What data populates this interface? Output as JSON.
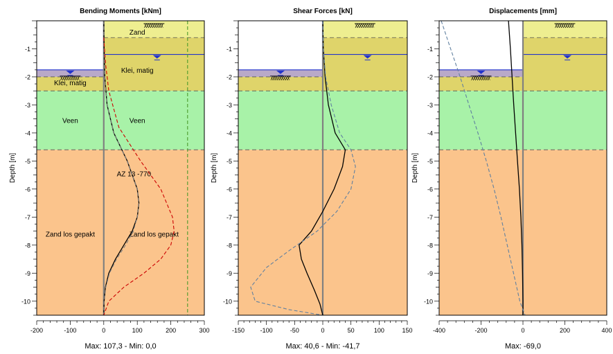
{
  "chart_data": [
    {
      "type": "line",
      "title": "Bending Moments [kNm]",
      "ylabel": "Depth [m]",
      "footer": "Max: 107,3 - Min: 0,0",
      "xlim": [
        -200,
        300
      ],
      "ylim": [
        -10.5,
        0
      ],
      "x_ticks": [
        "-200",
        "-100",
        "0",
        "100",
        "200",
        "300"
      ],
      "y_ticks": [
        "-1",
        "-2",
        "-3",
        "-4",
        "-5",
        "-6",
        "-7",
        "-8",
        "-9",
        "-10"
      ],
      "layer_labels": [
        {
          "text": "Zand",
          "x": 100,
          "y": -0.4
        },
        {
          "text": "Klei, matig",
          "x": 100,
          "y": -1.75
        },
        {
          "text": "Klei, matig",
          "x": -100,
          "y": -2.2
        },
        {
          "text": "Veen",
          "x": -100,
          "y": -3.55
        },
        {
          "text": "Veen",
          "x": 100,
          "y": -3.55
        },
        {
          "text": "AZ 13 -770",
          "x": 90,
          "y": -5.45
        },
        {
          "text": "Zand los gepakt",
          "x": -100,
          "y": -7.6
        },
        {
          "text": "Zand los gepakt",
          "x": 150,
          "y": -7.6
        }
      ],
      "series": [
        {
          "style": "solid",
          "color": "#000000",
          "points": [
            [
              0,
              0
            ],
            [
              1,
              -1
            ],
            [
              3,
              -2
            ],
            [
              10,
              -3
            ],
            [
              30,
              -4
            ],
            [
              70,
              -5
            ],
            [
              100,
              -6
            ],
            [
              105,
              -6.5
            ],
            [
              100,
              -7
            ],
            [
              85,
              -7.5
            ],
            [
              60,
              -8
            ],
            [
              35,
              -8.5
            ],
            [
              15,
              -9
            ],
            [
              5,
              -9.5
            ],
            [
              1,
              -10
            ],
            [
              0,
              -10.5
            ]
          ]
        },
        {
          "style": "dashed",
          "color": "#808080",
          "points": [
            [
              0,
              0
            ],
            [
              1,
              -1
            ],
            [
              3,
              -2
            ],
            [
              10,
              -3
            ],
            [
              30,
              -4
            ],
            [
              70,
              -5
            ],
            [
              100,
              -6
            ],
            [
              105,
              -6.5
            ],
            [
              100,
              -7
            ],
            [
              88,
              -7.5
            ],
            [
              65,
              -8
            ],
            [
              38,
              -8.5
            ],
            [
              17,
              -9
            ],
            [
              6,
              -9.5
            ],
            [
              1,
              -10
            ],
            [
              0,
              -10.5
            ]
          ]
        },
        {
          "style": "dashed",
          "color": "#cc0000",
          "points": [
            [
              0,
              -0.6
            ],
            [
              5,
              -1.5
            ],
            [
              15,
              -2.5
            ],
            [
              45,
              -3.8
            ],
            [
              110,
              -5
            ],
            [
              170,
              -6
            ],
            [
              205,
              -7
            ],
            [
              210,
              -7.5
            ],
            [
              200,
              -8
            ],
            [
              170,
              -8.5
            ],
            [
              120,
              -9
            ],
            [
              60,
              -9.5
            ],
            [
              15,
              -10
            ],
            [
              0,
              -10.5
            ]
          ]
        },
        {
          "style": "dashed",
          "color": "#4a9a2a",
          "points": [
            [
              250,
              0
            ],
            [
              250,
              -10.5
            ]
          ]
        }
      ]
    },
    {
      "type": "line",
      "title": "Shear Forces [kN]",
      "ylabel": "Depth [m]",
      "footer": "Max: 40,6 - Min: -41,7",
      "xlim": [
        -150,
        150
      ],
      "ylim": [
        -10.5,
        0
      ],
      "x_ticks": [
        "-150",
        "-100",
        "-50",
        "0",
        "50",
        "100",
        "150"
      ],
      "y_ticks": [
        "-1",
        "-2",
        "-3",
        "-4",
        "-5",
        "-6",
        "-7",
        "-8",
        "-9",
        "-10"
      ],
      "series": [
        {
          "style": "solid",
          "color": "#000000",
          "points": [
            [
              0,
              0
            ],
            [
              1,
              -1
            ],
            [
              4,
              -2
            ],
            [
              10,
              -3
            ],
            [
              22,
              -4
            ],
            [
              40,
              -4.6
            ],
            [
              35,
              -5.2
            ],
            [
              20,
              -6
            ],
            [
              0,
              -6.8
            ],
            [
              -20,
              -7.5
            ],
            [
              -42,
              -8
            ],
            [
              -38,
              -8.5
            ],
            [
              -28,
              -9
            ],
            [
              -15,
              -9.6
            ],
            [
              -5,
              -10.1
            ],
            [
              0,
              -10.5
            ]
          ]
        },
        {
          "style": "dashed",
          "color": "#6080a0",
          "points": [
            [
              0,
              0
            ],
            [
              1,
              -1
            ],
            [
              5,
              -2
            ],
            [
              15,
              -3
            ],
            [
              30,
              -4
            ],
            [
              50,
              -4.6
            ],
            [
              58,
              -5.2
            ],
            [
              50,
              -6
            ],
            [
              25,
              -6.8
            ],
            [
              -10,
              -7.5
            ],
            [
              -60,
              -8.2
            ],
            [
              -100,
              -8.8
            ],
            [
              -128,
              -9.5
            ],
            [
              -120,
              -10
            ],
            [
              -60,
              -10.3
            ],
            [
              0,
              -10.5
            ]
          ]
        }
      ]
    },
    {
      "type": "line",
      "title": "Displacements [mm]",
      "ylabel": "Depth [m]",
      "footer": "Max: -69,0",
      "xlim": [
        -400,
        400
      ],
      "ylim": [
        -10.5,
        0
      ],
      "x_ticks": [
        "-400",
        "-200",
        "0",
        "200",
        "400"
      ],
      "y_ticks": [
        "-1",
        "-2",
        "-3",
        "-4",
        "-5",
        "-6",
        "-7",
        "-8",
        "-9",
        "-10"
      ],
      "series": [
        {
          "style": "solid",
          "color": "#000000",
          "points": [
            [
              -69,
              0
            ],
            [
              -60,
              -1
            ],
            [
              -52,
              -2
            ],
            [
              -44,
              -3
            ],
            [
              -35,
              -4
            ],
            [
              -26,
              -5
            ],
            [
              -17,
              -6
            ],
            [
              -10,
              -7
            ],
            [
              -5,
              -8
            ],
            [
              -2,
              -9
            ],
            [
              0,
              -10
            ],
            [
              0,
              -10.5
            ]
          ]
        },
        {
          "style": "dashed",
          "color": "#6080a0",
          "points": [
            [
              -390,
              0
            ],
            [
              -345,
              -1
            ],
            [
              -300,
              -2
            ],
            [
              -258,
              -3
            ],
            [
              -215,
              -4
            ],
            [
              -175,
              -5
            ],
            [
              -138,
              -6
            ],
            [
              -105,
              -7
            ],
            [
              -75,
              -8
            ],
            [
              -45,
              -9
            ],
            [
              -15,
              -10
            ],
            [
              10,
              -10.5
            ]
          ]
        }
      ]
    }
  ],
  "soil_profile": {
    "left_layers": [
      {
        "name": "Klei, matig",
        "top": -1.75,
        "bottom": -2.0,
        "color": "#b9a9c8"
      },
      {
        "name": "Klei, matig",
        "top": -2.0,
        "bottom": -2.5,
        "color": "#dfd46a"
      },
      {
        "name": "Veen",
        "top": -2.5,
        "bottom": -4.6,
        "color": "#a8f2a8"
      },
      {
        "name": "Zand los gepakt",
        "top": -4.6,
        "bottom": -10.5,
        "color": "#fbc48c"
      }
    ],
    "right_layers": [
      {
        "name": "Zand",
        "top": 0,
        "bottom": -0.6,
        "color": "#eeee90"
      },
      {
        "name": "Klei, matig",
        "top": -0.6,
        "bottom": -2.5,
        "color": "#dfd46a"
      },
      {
        "name": "Veen",
        "top": -2.5,
        "bottom": -4.6,
        "color": "#a8f2a8"
      },
      {
        "name": "Zand los gepakt",
        "top": -4.6,
        "bottom": -10.5,
        "color": "#fbc48c"
      }
    ],
    "left_water_level": -1.75,
    "right_water_level": -1.2,
    "water_color": "#2233cc"
  }
}
